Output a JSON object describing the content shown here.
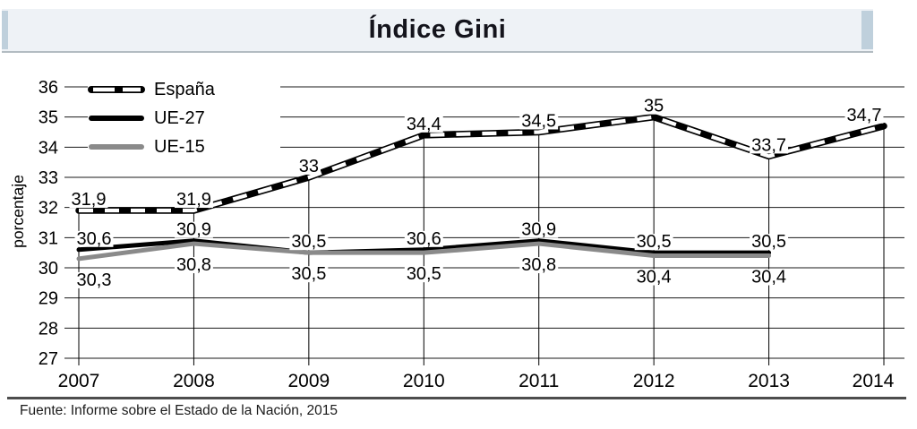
{
  "header": {
    "title": "Índice Gini"
  },
  "theme": {
    "band_bg": "#eef2f6",
    "band_cap": "#bfd0dc",
    "rule_color": "#4d4d4d",
    "grid_color": "#1a1a1a",
    "text_color": "#000000"
  },
  "chart_data": {
    "type": "line",
    "title": "Índice Gini",
    "ylabel": "porcentaje",
    "x": [
      2007,
      2008,
      2009,
      2010,
      2011,
      2012,
      2013,
      2014
    ],
    "ylim": [
      27,
      36
    ],
    "yticks": [
      36,
      35,
      34,
      33,
      32,
      31,
      30,
      29,
      28,
      27
    ],
    "grid": "horizontal",
    "legend_position": "top-left",
    "series": [
      {
        "name": "España",
        "style": "black-white-dashed",
        "color": "#000000",
        "overlay": "#ffffff",
        "drop_lines": true,
        "label_side": "above",
        "values": [
          31.9,
          31.9,
          33,
          34.4,
          34.5,
          35,
          33.7,
          34.7
        ],
        "labels": [
          "31,9",
          "31,9",
          "33",
          "34,4",
          "34,5",
          "35",
          "33,7",
          "34,7"
        ]
      },
      {
        "name": "UE-27",
        "style": "solid",
        "color": "#000000",
        "label_side": "above",
        "values": [
          30.6,
          30.9,
          30.5,
          30.6,
          30.9,
          30.5,
          30.5
        ],
        "labels": [
          "30,6",
          "30,9",
          "30,5",
          "30,6",
          "30,9",
          "30,5",
          "30,5"
        ]
      },
      {
        "name": "UE-15",
        "style": "solid",
        "color": "#8a8a8a",
        "label_side": "below",
        "values": [
          30.3,
          30.8,
          30.5,
          30.5,
          30.8,
          30.4,
          30.4
        ],
        "labels": [
          "30,3",
          "30,8",
          "30,5",
          "30,5",
          "30,8",
          "30,4",
          "30,4"
        ]
      }
    ],
    "source": "Fuente: Informe sobre el Estado de la Nación, 2015"
  }
}
